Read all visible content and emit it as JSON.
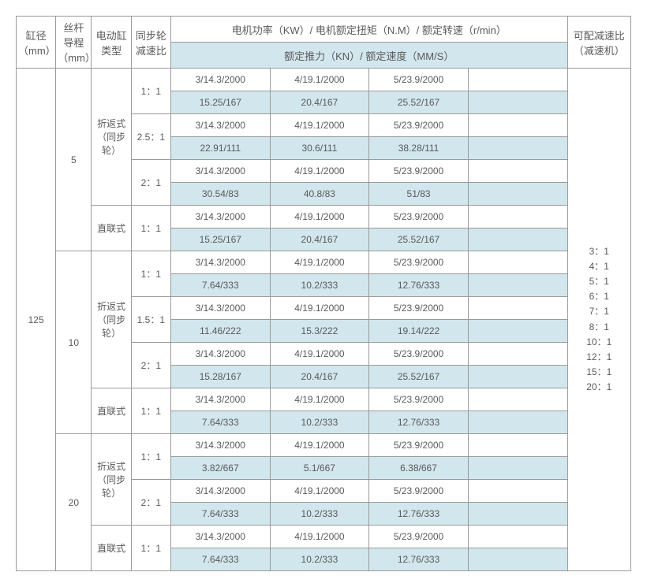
{
  "header": {
    "col1": "缸径\n（mm）",
    "col2": "丝杆\n导程\n（mm）",
    "col3": "电动缸\n类型",
    "col4": "同步轮\n减速比",
    "row1_merged": "电机功率（KW）/ 电机额定扭矩（N.M）/ 额定转速（r/min）",
    "row2_merged": "额定推力（KN）/ 额定速度（MM/S）",
    "col_last": "可配减速比\n（减速机）"
  },
  "cyl": {
    "diameter": "125"
  },
  "lead": {
    "a": "5",
    "b": "10",
    "c": "20"
  },
  "driveType": {
    "fold": "折返式\n（同步\n轮）",
    "direct": "直联式"
  },
  "ratios": {
    "r1": "1：1",
    "r25": "2.5：1",
    "r2": "2：1",
    "r15": "1.5：1"
  },
  "cell": {
    "motor": {
      "a": "3/14.3/2000",
      "b": "4/19.1/2000",
      "c": "5/23.9/2000"
    }
  },
  "thrust": {
    "t1": {
      "a": "15.25/167",
      "b": "20.4/167",
      "c": "25.52/167"
    },
    "t2": {
      "a": "22.91/111",
      "b": "30.6/111",
      "c": "38.28/111"
    },
    "t3": {
      "a": "30.54/83",
      "b": "40.8/83",
      "c": "51/83"
    },
    "t4": {
      "a": "15.25/167",
      "b": "20.4/167",
      "c": "25.52/167"
    },
    "t5": {
      "a": "7.64/333",
      "b": "10.2/333",
      "c": "12.76/333"
    },
    "t6": {
      "a": "11.46/222",
      "b": "15.3/222",
      "c": "19.14/222"
    },
    "t7": {
      "a": "15.28/167",
      "b": "20.4/167",
      "c": "25.52/167"
    },
    "t8": {
      "a": "7.64/333",
      "b": "10.2/333",
      "c": "12.76/333"
    },
    "t9": {
      "a": "3.82/667",
      "b": "5.1/667",
      "c": "6.38/667"
    },
    "t10": {
      "a": "7.64/333",
      "b": "10.2/333",
      "c": "12.76/333"
    },
    "t11": {
      "a": "7.64/333",
      "b": "10.2/333",
      "c": "12.76/333"
    }
  },
  "reducers": {
    "r1": "3：1",
    "r2": "4：1",
    "r3": "5：1",
    "r4": "6：1",
    "r5": "7：1",
    "r6": "8：1",
    "r7": "10：1",
    "r8": "12：1",
    "r9": "15：1",
    "r10": "20：1"
  }
}
